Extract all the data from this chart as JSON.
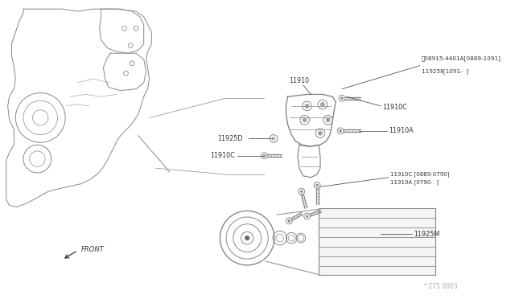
{
  "background_color": "#ffffff",
  "dc": "#888888",
  "tc": "#333333",
  "labels": {
    "w08915_line1": "Ⓦ08915-4401A[0889-1091]",
    "w08915_line2": "11925Ⅱ[1091-  ]",
    "11910": "11910",
    "11910C_top": "11910C",
    "11925D": "11925D",
    "11910C_mid": "11910C",
    "11910A": "11910A",
    "11910C_btm_line1": "11910C [0889-0790]",
    "11910C_btm_line2": "11910A [0790-  ]",
    "11925M": "11925M",
    "FRONT": "FRONT"
  },
  "watermark": "^275 0003",
  "fig_width": 6.4,
  "fig_height": 3.72,
  "dpi": 100
}
